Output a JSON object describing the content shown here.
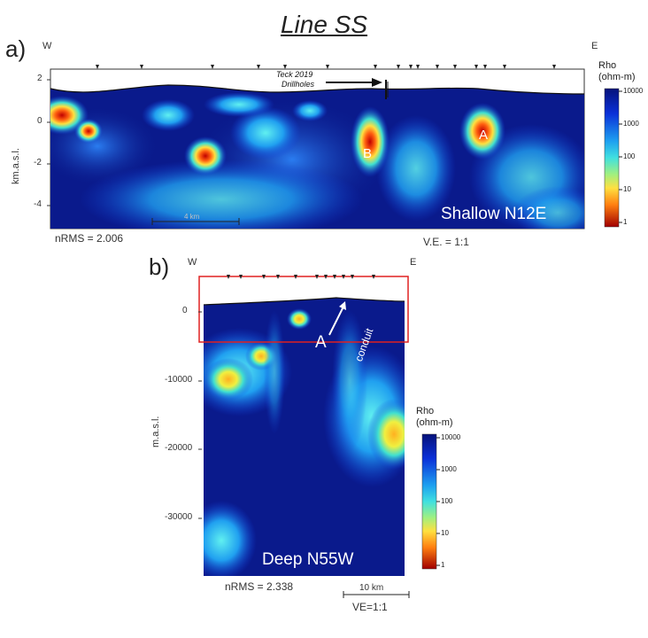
{
  "title": "Line SS",
  "panel_a": {
    "letter": "a)",
    "west": "W",
    "east": "E",
    "y_axis_label": "km.a.s.l.",
    "y_ticks": [
      "2",
      "0",
      "-2",
      "-4"
    ],
    "annotation_line1": "Teck 2019",
    "annotation_line2": "Drillholes",
    "anomaly_b": "B",
    "anomaly_a": "A",
    "scale_bar": "4 km",
    "inset_label": "Shallow N12E",
    "nrms": "nRMS = 2.006",
    "ve": "V.E. = 1:1"
  },
  "panel_b": {
    "letter": "b)",
    "west": "W",
    "east": "E",
    "y_axis_label": "m.a.s.l.",
    "y_ticks": [
      "0",
      "-10000",
      "-20000",
      "-30000"
    ],
    "anomaly_a": "A",
    "conduit": "conduit",
    "inset_label": "Deep N55W",
    "nrms": "nRMS = 2.338",
    "scale_bar": "10 km",
    "ve": "VE=1:1"
  },
  "colorbar": {
    "title_line1": "Rho",
    "title_line2": "(ohm-m)",
    "ticks": [
      "10000",
      "1000",
      "100",
      "10",
      "1"
    ]
  },
  "colors": {
    "deep_blue": "#0a1a8c",
    "cyan": "#28c8f0",
    "yellow": "#ffe040",
    "red": "#c00000",
    "box_red": "#e02020"
  }
}
